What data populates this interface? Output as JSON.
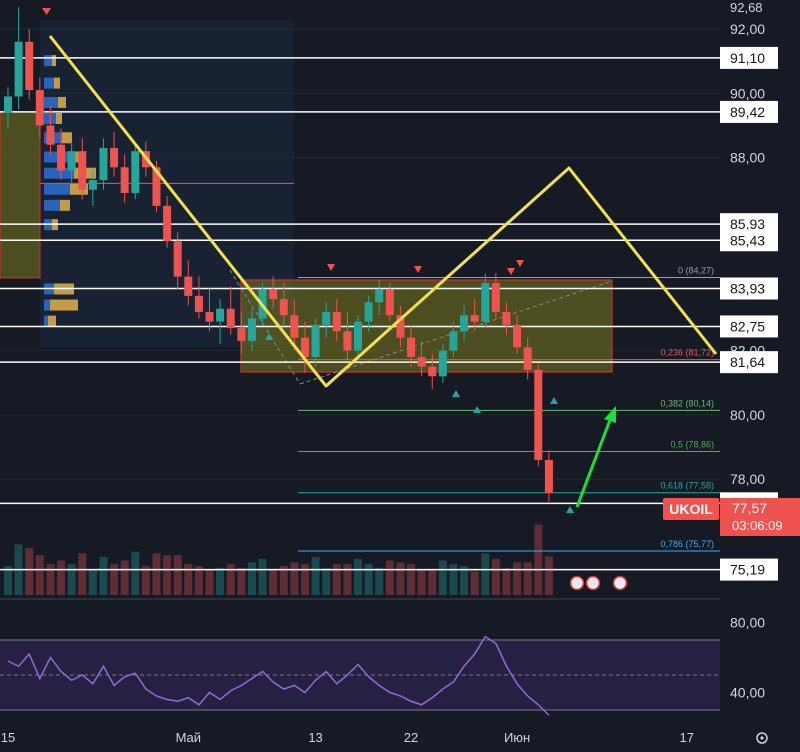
{
  "chart_data": {
    "type": "candlestick",
    "symbol": "UKOIL",
    "last_price": {
      "value": 77.57,
      "label": "77,57",
      "countdown": "03:06:09"
    },
    "colors": {
      "background": "#161a25",
      "up": "#26a69a",
      "down": "#ef5350",
      "level": "#ffffff",
      "pattern": "#f2e14c",
      "zone_fill": "#7a7a1e",
      "zone_border": "#d32f2f",
      "profile_up": "#2d6fd6",
      "profile_down": "#e0b24a",
      "arrow": "#1fdc3a",
      "rsi": "#8e6bd6",
      "rsi_band": "#2d2550",
      "axis_text": "#d1d4dc"
    },
    "price_axis": {
      "min": 74.4,
      "max": 92.9,
      "tick_labels": [
        "92,00",
        "90,00",
        "88,00",
        "82,00",
        "80,00",
        "78,00"
      ],
      "tick_values": [
        92,
        90,
        88,
        82,
        80,
        78
      ],
      "top_label": "92,68"
    },
    "time_axis": {
      "labels": [
        "15",
        "Май",
        "13",
        "22",
        "Июн",
        "17"
      ],
      "label_index": [
        0,
        17,
        29,
        38,
        48,
        64
      ],
      "index_range": [
        0,
        66
      ]
    },
    "horizontal_levels": [
      {
        "value": 91.1,
        "label": "91,10"
      },
      {
        "value": 89.42,
        "label": "89,42"
      },
      {
        "value": 85.93,
        "label": "85,93"
      },
      {
        "value": 85.43,
        "label": "85,43"
      },
      {
        "value": 83.93,
        "label": "83,93"
      },
      {
        "value": 82.75,
        "label": "82,75"
      },
      {
        "value": 81.64,
        "label": "81,64"
      },
      {
        "value": 77.25,
        "label": "77,25"
      },
      {
        "value": 75.19,
        "label": "75,19"
      }
    ],
    "fibonacci": [
      {
        "label": "0 (84,27)",
        "value": 84.27,
        "color": "#9e9e9e"
      },
      {
        "label": "0,236 (81,72)",
        "value": 81.72,
        "color": "#ef5350"
      },
      {
        "label": "0,382 (80,14)",
        "value": 80.14,
        "color": "#66bb6a"
      },
      {
        "label": "0,5 (78,86)",
        "value": 78.86,
        "color": "#4caf50"
      },
      {
        "label": "0,618 (77,58)",
        "value": 77.58,
        "color": "#26a69a"
      },
      {
        "label": "0,786 (75,77)",
        "value": 75.77,
        "color": "#42a5f5"
      }
    ],
    "candles": [
      {
        "i": 0,
        "o": 89.4,
        "h": 90.2,
        "l": 88.9,
        "c": 89.9
      },
      {
        "i": 1,
        "o": 89.9,
        "h": 92.68,
        "l": 89.5,
        "c": 91.6
      },
      {
        "i": 2,
        "o": 91.6,
        "h": 92.0,
        "l": 89.8,
        "c": 90.1
      },
      {
        "i": 3,
        "o": 90.1,
        "h": 90.5,
        "l": 88.6,
        "c": 89.0
      },
      {
        "i": 4,
        "o": 89.0,
        "h": 89.6,
        "l": 88.1,
        "c": 88.4
      },
      {
        "i": 5,
        "o": 88.4,
        "h": 88.9,
        "l": 87.3,
        "c": 87.6
      },
      {
        "i": 6,
        "o": 87.6,
        "h": 88.5,
        "l": 87.2,
        "c": 88.2
      },
      {
        "i": 7,
        "o": 88.2,
        "h": 88.6,
        "l": 86.7,
        "c": 87.0
      },
      {
        "i": 8,
        "o": 87.0,
        "h": 87.6,
        "l": 86.5,
        "c": 87.3
      },
      {
        "i": 9,
        "o": 87.3,
        "h": 88.6,
        "l": 87.0,
        "c": 88.3
      },
      {
        "i": 10,
        "o": 88.3,
        "h": 88.8,
        "l": 87.4,
        "c": 87.7
      },
      {
        "i": 11,
        "o": 87.7,
        "h": 88.1,
        "l": 86.6,
        "c": 86.9
      },
      {
        "i": 12,
        "o": 86.9,
        "h": 88.4,
        "l": 86.7,
        "c": 88.2
      },
      {
        "i": 13,
        "o": 88.2,
        "h": 88.5,
        "l": 87.4,
        "c": 87.7
      },
      {
        "i": 14,
        "o": 87.7,
        "h": 87.9,
        "l": 86.3,
        "c": 86.5
      },
      {
        "i": 15,
        "o": 86.5,
        "h": 86.8,
        "l": 85.2,
        "c": 85.4
      },
      {
        "i": 16,
        "o": 85.4,
        "h": 85.7,
        "l": 83.9,
        "c": 84.3
      },
      {
        "i": 17,
        "o": 84.3,
        "h": 84.8,
        "l": 83.4,
        "c": 83.7
      },
      {
        "i": 18,
        "o": 83.7,
        "h": 84.3,
        "l": 83.0,
        "c": 83.2
      },
      {
        "i": 19,
        "o": 83.2,
        "h": 83.9,
        "l": 82.6,
        "c": 82.9
      },
      {
        "i": 20,
        "o": 82.9,
        "h": 83.6,
        "l": 82.2,
        "c": 83.3
      },
      {
        "i": 21,
        "o": 83.3,
        "h": 84.0,
        "l": 82.5,
        "c": 82.7
      },
      {
        "i": 22,
        "o": 82.7,
        "h": 83.2,
        "l": 81.9,
        "c": 82.3
      },
      {
        "i": 23,
        "o": 82.3,
        "h": 83.3,
        "l": 82.0,
        "c": 83.0
      },
      {
        "i": 24,
        "o": 83.0,
        "h": 84.1,
        "l": 82.8,
        "c": 83.9
      },
      {
        "i": 25,
        "o": 83.9,
        "h": 84.3,
        "l": 83.3,
        "c": 83.6
      },
      {
        "i": 26,
        "o": 83.6,
        "h": 84.1,
        "l": 82.8,
        "c": 83.1
      },
      {
        "i": 27,
        "o": 83.1,
        "h": 83.6,
        "l": 82.0,
        "c": 82.4
      },
      {
        "i": 28,
        "o": 82.4,
        "h": 82.9,
        "l": 81.3,
        "c": 81.8
      },
      {
        "i": 29,
        "o": 81.8,
        "h": 83.0,
        "l": 81.5,
        "c": 82.8
      },
      {
        "i": 30,
        "o": 82.8,
        "h": 83.5,
        "l": 82.4,
        "c": 83.2
      },
      {
        "i": 31,
        "o": 83.2,
        "h": 83.6,
        "l": 82.3,
        "c": 82.6
      },
      {
        "i": 32,
        "o": 82.6,
        "h": 83.2,
        "l": 81.7,
        "c": 82.0
      },
      {
        "i": 33,
        "o": 82.0,
        "h": 83.1,
        "l": 81.8,
        "c": 82.9
      },
      {
        "i": 34,
        "o": 82.9,
        "h": 83.7,
        "l": 82.6,
        "c": 83.5
      },
      {
        "i": 35,
        "o": 83.5,
        "h": 84.2,
        "l": 83.1,
        "c": 83.9
      },
      {
        "i": 36,
        "o": 83.9,
        "h": 84.1,
        "l": 82.9,
        "c": 83.1
      },
      {
        "i": 37,
        "o": 83.1,
        "h": 83.4,
        "l": 82.1,
        "c": 82.4
      },
      {
        "i": 38,
        "o": 82.4,
        "h": 82.8,
        "l": 81.5,
        "c": 81.8
      },
      {
        "i": 39,
        "o": 81.8,
        "h": 82.3,
        "l": 81.2,
        "c": 81.5
      },
      {
        "i": 40,
        "o": 81.5,
        "h": 81.9,
        "l": 80.8,
        "c": 81.2
      },
      {
        "i": 41,
        "o": 81.2,
        "h": 82.2,
        "l": 81.0,
        "c": 82.0
      },
      {
        "i": 42,
        "o": 82.0,
        "h": 82.9,
        "l": 81.8,
        "c": 82.6
      },
      {
        "i": 43,
        "o": 82.6,
        "h": 83.4,
        "l": 82.3,
        "c": 83.1
      },
      {
        "i": 44,
        "o": 83.1,
        "h": 83.6,
        "l": 82.6,
        "c": 82.9
      },
      {
        "i": 45,
        "o": 82.9,
        "h": 84.4,
        "l": 82.7,
        "c": 84.1
      },
      {
        "i": 46,
        "o": 84.1,
        "h": 84.4,
        "l": 83.0,
        "c": 83.2
      },
      {
        "i": 47,
        "o": 83.2,
        "h": 83.5,
        "l": 82.5,
        "c": 82.8
      },
      {
        "i": 48,
        "o": 82.8,
        "h": 83.1,
        "l": 81.9,
        "c": 82.1
      },
      {
        "i": 49,
        "o": 82.1,
        "h": 82.4,
        "l": 81.1,
        "c": 81.4
      },
      {
        "i": 50,
        "o": 81.4,
        "h": 81.6,
        "l": 78.4,
        "c": 78.6
      },
      {
        "i": 51,
        "o": 78.6,
        "h": 78.9,
        "l": 77.3,
        "c": 77.57
      }
    ],
    "rsi": {
      "ticks": [
        "80,00",
        "40,00"
      ],
      "tick_values": [
        80,
        40
      ],
      "band": [
        30,
        70
      ],
      "min": 10,
      "max": 90,
      "values": [
        58,
        55,
        62,
        48,
        60,
        52,
        47,
        50,
        45,
        55,
        44,
        49,
        51,
        42,
        38,
        36,
        35,
        37,
        33,
        40,
        36,
        41,
        44,
        48,
        52,
        46,
        42,
        44,
        40,
        47,
        52,
        45,
        50,
        56,
        49,
        44,
        40,
        38,
        35,
        33,
        37,
        42,
        46,
        55,
        62,
        72,
        68,
        55,
        45,
        38,
        33,
        27
      ]
    }
  }
}
